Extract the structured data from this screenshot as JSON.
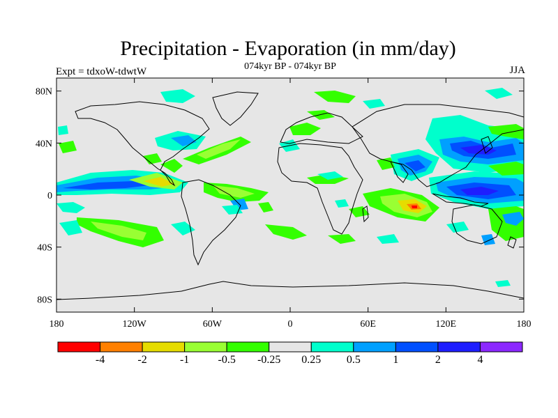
{
  "title": "Precipitation - Evaporation (in mm/day)",
  "subtitle": "074kyr BP - 074kyr BP",
  "left_label": "Expt = tdxoW-tdwtW",
  "right_label": "JJA",
  "map": {
    "projection": "cylindrical equidistant",
    "lon_range": [
      -180,
      180
    ],
    "lat_range": [
      -90,
      90
    ],
    "background_color": "#e6e6e6",
    "coastline_color": "#000000",
    "lat_ticks": [
      {
        "value": 80,
        "label": "80N"
      },
      {
        "value": 40,
        "label": "40N"
      },
      {
        "value": 0,
        "label": "0"
      },
      {
        "value": -40,
        "label": "40S"
      },
      {
        "value": -80,
        "label": "80S"
      }
    ],
    "lon_ticks": [
      {
        "value": -180,
        "label": "180"
      },
      {
        "value": -120,
        "label": "120W"
      },
      {
        "value": -60,
        "label": "60W"
      },
      {
        "value": 0,
        "label": "0"
      },
      {
        "value": 60,
        "label": "60E"
      },
      {
        "value": 120,
        "label": "120E"
      },
      {
        "value": 180,
        "label": "180"
      }
    ]
  },
  "colorbar": {
    "colors": [
      "#ff0000",
      "#ff8000",
      "#e6dc00",
      "#99ff33",
      "#33ff00",
      "#e6e6e6",
      "#00ffcc",
      "#00a0ff",
      "#0050ff",
      "#1e1eff",
      "#8c28ff"
    ],
    "labels": [
      "-4",
      "-2",
      "-1",
      "-0.5",
      "-0.25",
      "0.25",
      "0.5",
      "1",
      "2",
      "4"
    ]
  }
}
